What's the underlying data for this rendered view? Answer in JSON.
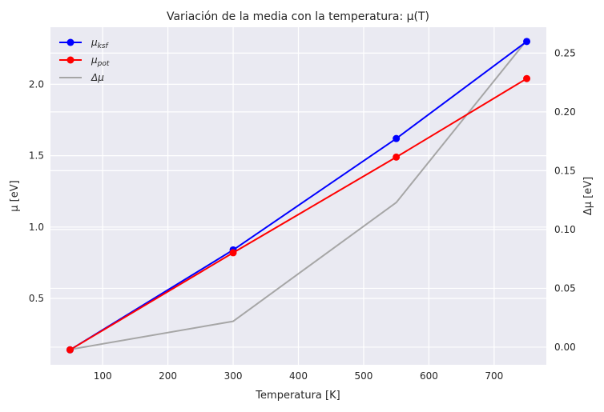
{
  "chart_data": {
    "type": "line",
    "title": "Variación de la media con la temperatura: μ(T)",
    "xlabel": "Temperatura [K]",
    "ylabel": "μ [eV]",
    "y2label": "Δμ [eV]",
    "x": [
      50,
      300,
      550,
      750
    ],
    "xlim": [
      20,
      780
    ],
    "ylim": [
      0.035,
      2.4
    ],
    "y2lim": [
      -0.015,
      0.272
    ],
    "xticks": [
      100,
      200,
      300,
      400,
      500,
      600,
      700
    ],
    "yticks": [
      0.5,
      1.0,
      1.5,
      2.0
    ],
    "y2ticks": [
      0.0,
      0.05,
      0.1,
      0.15,
      0.2,
      0.25
    ],
    "xtick_labels": [
      "100",
      "200",
      "300",
      "400",
      "500",
      "600",
      "700"
    ],
    "ytick_labels": [
      "0.5",
      "1.0",
      "1.5",
      "2.0"
    ],
    "y2tick_labels": [
      "0.00",
      "0.05",
      "0.10",
      "0.15",
      "0.20",
      "0.25"
    ],
    "grid": true,
    "legend_position": "top-left",
    "series": [
      {
        "name": "μ_ksf",
        "legend_main": "μ",
        "legend_sub": "ksf",
        "axis": "left",
        "color": "#0000ff",
        "markers": true,
        "values": [
          0.14,
          0.84,
          1.62,
          2.3
        ]
      },
      {
        "name": "μ_pot",
        "legend_main": "μ",
        "legend_sub": "pot",
        "axis": "left",
        "color": "#ff0000",
        "markers": true,
        "values": [
          0.14,
          0.82,
          1.49,
          2.04
        ]
      },
      {
        "name": "Δμ",
        "legend_main": "Δμ",
        "legend_sub": "",
        "axis": "right",
        "color": "#a6a6a6",
        "markers": false,
        "values": [
          -0.002,
          0.022,
          0.123,
          0.261
        ]
      }
    ]
  }
}
